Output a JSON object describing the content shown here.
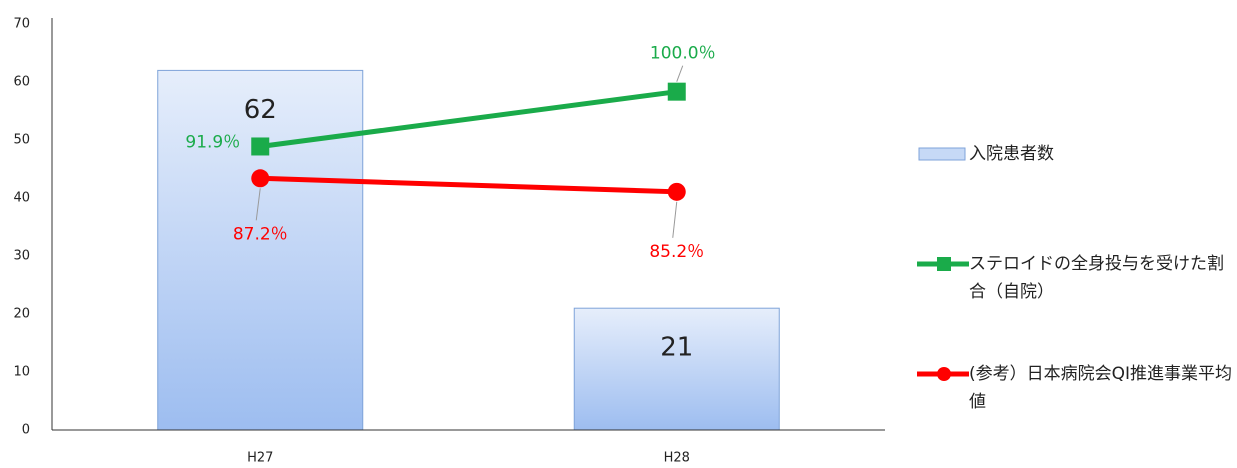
{
  "chart_data": {
    "type": "bar",
    "categories": [
      "H27",
      "H28"
    ],
    "series": [
      {
        "name": "入院患者数",
        "type": "bar",
        "color": "#c6d9f6",
        "values": [
          62,
          21
        ]
      },
      {
        "name": "ステロイドの全身投与を受けた割合（自院）",
        "type": "line",
        "axis": "y2",
        "marker": "square",
        "color": "#1aab4a",
        "values": [
          91.9,
          100.0
        ],
        "value_labels": [
          "91.9％",
          "100.0％"
        ]
      },
      {
        "name": "(参考）日本病院会QI推進事業平均値",
        "type": "line",
        "axis": "y2",
        "marker": "circle",
        "color": "#ff0000",
        "values": [
          87.2,
          85.2
        ],
        "value_labels": [
          "87.2％",
          "85.2％"
        ]
      }
    ],
    "ylim": [
      0,
      70
    ],
    "yticks": [
      0,
      10,
      20,
      30,
      40,
      50,
      60,
      70
    ],
    "y2lim": [
      50,
      110
    ]
  }
}
